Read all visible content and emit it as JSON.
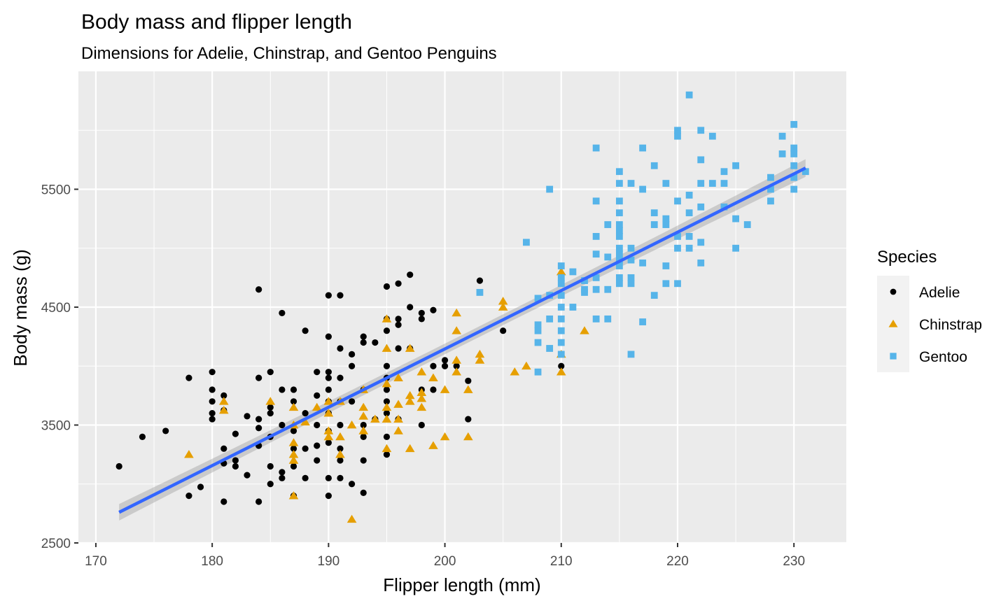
{
  "chart_data": {
    "type": "scatter",
    "title": "Body mass and flipper length",
    "subtitle": "Dimensions for Adelie, Chinstrap, and Gentoo Penguins",
    "xlabel": "Flipper length (mm)",
    "ylabel": "Body mass (g)",
    "xlim": [
      168.5,
      234.5
    ],
    "ylim": [
      2500,
      6500
    ],
    "x_ticks": [
      170,
      180,
      190,
      200,
      210,
      220,
      230
    ],
    "y_ticks": [
      2500,
      3500,
      4500,
      5500
    ],
    "grid": true,
    "legend": {
      "title": "Species",
      "placement": "right"
    },
    "series": [
      {
        "name": "Adelie",
        "color": "#000000",
        "marker": "circle",
        "points": [
          [
            172,
            3150
          ],
          [
            174,
            3400
          ],
          [
            176,
            3450
          ],
          [
            178,
            3900
          ],
          [
            178,
            2900
          ],
          [
            179,
            2975
          ],
          [
            180,
            3950
          ],
          [
            180,
            3800
          ],
          [
            180,
            3700
          ],
          [
            180,
            3600
          ],
          [
            180,
            3550
          ],
          [
            181,
            3750
          ],
          [
            181,
            3625
          ],
          [
            181,
            3300
          ],
          [
            181,
            3175
          ],
          [
            181,
            2850
          ],
          [
            182,
            3425
          ],
          [
            182,
            3200
          ],
          [
            182,
            3150
          ],
          [
            183,
            3575
          ],
          [
            183,
            3075
          ],
          [
            184,
            4650
          ],
          [
            184,
            3900
          ],
          [
            184,
            3550
          ],
          [
            184,
            3475
          ],
          [
            184,
            3325
          ],
          [
            184,
            2850
          ],
          [
            185,
            3950
          ],
          [
            185,
            3650
          ],
          [
            185,
            3600
          ],
          [
            185,
            3400
          ],
          [
            185,
            3150
          ],
          [
            185,
            3000
          ],
          [
            186,
            4450
          ],
          [
            186,
            3800
          ],
          [
            186,
            3500
          ],
          [
            186,
            3100
          ],
          [
            186,
            3050
          ],
          [
            187,
            3800
          ],
          [
            187,
            3700
          ],
          [
            187,
            3450
          ],
          [
            187,
            3300
          ],
          [
            187,
            3150
          ],
          [
            187,
            2900
          ],
          [
            188,
            4300
          ],
          [
            188,
            3600
          ],
          [
            188,
            3300
          ],
          [
            188,
            3050
          ],
          [
            189,
            3950
          ],
          [
            189,
            3750
          ],
          [
            189,
            3500
          ],
          [
            189,
            3325
          ],
          [
            189,
            3200
          ],
          [
            190,
            4600
          ],
          [
            190,
            4250
          ],
          [
            190,
            3950
          ],
          [
            190,
            3900
          ],
          [
            190,
            3800
          ],
          [
            190,
            3700
          ],
          [
            190,
            3600
          ],
          [
            190,
            3450
          ],
          [
            190,
            3350
          ],
          [
            190,
            3050
          ],
          [
            190,
            2900
          ],
          [
            191,
            4600
          ],
          [
            191,
            4150
          ],
          [
            191,
            3900
          ],
          [
            191,
            3700
          ],
          [
            191,
            3500
          ],
          [
            191,
            3300
          ],
          [
            191,
            3200
          ],
          [
            191,
            3050
          ],
          [
            192,
            4100
          ],
          [
            192,
            4000
          ],
          [
            192,
            3700
          ],
          [
            192,
            3000
          ],
          [
            193,
            4250
          ],
          [
            193,
            4200
          ],
          [
            193,
            3800
          ],
          [
            193,
            3500
          ],
          [
            193,
            3400
          ],
          [
            193,
            3200
          ],
          [
            193,
            2925
          ],
          [
            194,
            4200
          ],
          [
            194,
            3550
          ],
          [
            195,
            4675
          ],
          [
            195,
            4400
          ],
          [
            195,
            4300
          ],
          [
            195,
            4000
          ],
          [
            195,
            3900
          ],
          [
            195,
            3800
          ],
          [
            195,
            3700
          ],
          [
            195,
            3600
          ],
          [
            195,
            3400
          ],
          [
            195,
            3250
          ],
          [
            196,
            4700
          ],
          [
            196,
            4400
          ],
          [
            196,
            4350
          ],
          [
            196,
            4150
          ],
          [
            196,
            3550
          ],
          [
            197,
            4775
          ],
          [
            197,
            4500
          ],
          [
            197,
            4150
          ],
          [
            198,
            4450
          ],
          [
            198,
            4400
          ],
          [
            198,
            3800
          ],
          [
            198,
            3500
          ],
          [
            199,
            4475
          ],
          [
            199,
            4000
          ],
          [
            199,
            3800
          ],
          [
            200,
            4050
          ],
          [
            200,
            4000
          ],
          [
            201,
            4000
          ],
          [
            202,
            3875
          ],
          [
            202,
            3550
          ],
          [
            203,
            4725
          ],
          [
            205,
            4300
          ],
          [
            210,
            4000
          ]
        ]
      },
      {
        "name": "Chinstrap",
        "color": "#E69F00",
        "marker": "triangle",
        "points": [
          [
            178,
            3250
          ],
          [
            181,
            3700
          ],
          [
            181,
            3625
          ],
          [
            185,
            3700
          ],
          [
            187,
            3650
          ],
          [
            187,
            3500
          ],
          [
            187,
            3350
          ],
          [
            187,
            3250
          ],
          [
            187,
            3200
          ],
          [
            187,
            2900
          ],
          [
            188,
            3525
          ],
          [
            189,
            3650
          ],
          [
            190,
            3700
          ],
          [
            190,
            3600
          ],
          [
            190,
            3450
          ],
          [
            190,
            3400
          ],
          [
            191,
            3700
          ],
          [
            191,
            3400
          ],
          [
            191,
            3250
          ],
          [
            192,
            3500
          ],
          [
            192,
            2700
          ],
          [
            193,
            3800
          ],
          [
            193,
            3650
          ],
          [
            193,
            3575
          ],
          [
            193,
            3450
          ],
          [
            194,
            3550
          ],
          [
            195,
            4400
          ],
          [
            195,
            4150
          ],
          [
            195,
            3850
          ],
          [
            195,
            3650
          ],
          [
            195,
            3550
          ],
          [
            195,
            3300
          ],
          [
            196,
            3900
          ],
          [
            196,
            3675
          ],
          [
            196,
            3550
          ],
          [
            196,
            3450
          ],
          [
            197,
            4150
          ],
          [
            197,
            3750
          ],
          [
            197,
            3700
          ],
          [
            197,
            3300
          ],
          [
            198,
            3950
          ],
          [
            198,
            3775
          ],
          [
            198,
            3725
          ],
          [
            198,
            3650
          ],
          [
            199,
            3900
          ],
          [
            199,
            3325
          ],
          [
            200,
            3800
          ],
          [
            200,
            3400
          ],
          [
            201,
            4450
          ],
          [
            201,
            4300
          ],
          [
            201,
            4050
          ],
          [
            201,
            3950
          ],
          [
            202,
            3800
          ],
          [
            202,
            3400
          ],
          [
            203,
            4100
          ],
          [
            203,
            4050
          ],
          [
            205,
            4550
          ],
          [
            205,
            4500
          ],
          [
            206,
            3950
          ],
          [
            207,
            4000
          ],
          [
            210,
            4800
          ],
          [
            210,
            4100
          ],
          [
            210,
            3950
          ],
          [
            212,
            4300
          ]
        ]
      },
      {
        "name": "Gentoo",
        "color": "#56B4E9",
        "marker": "square",
        "points": [
          [
            203,
            4625
          ],
          [
            207,
            5050
          ],
          [
            208,
            4575
          ],
          [
            208,
            4350
          ],
          [
            208,
            4300
          ],
          [
            208,
            4200
          ],
          [
            208,
            3950
          ],
          [
            209,
            5500
          ],
          [
            209,
            4600
          ],
          [
            209,
            4400
          ],
          [
            209,
            4150
          ],
          [
            210,
            4850
          ],
          [
            210,
            4750
          ],
          [
            210,
            4700
          ],
          [
            210,
            4600
          ],
          [
            210,
            4500
          ],
          [
            210,
            4400
          ],
          [
            210,
            4300
          ],
          [
            210,
            4200
          ],
          [
            210,
            4100
          ],
          [
            211,
            4800
          ],
          [
            211,
            4500
          ],
          [
            212,
            4725
          ],
          [
            212,
            4650
          ],
          [
            212,
            4625
          ],
          [
            213,
            5850
          ],
          [
            213,
            5400
          ],
          [
            213,
            5100
          ],
          [
            213,
            4950
          ],
          [
            213,
            4750
          ],
          [
            213,
            4650
          ],
          [
            213,
            4400
          ],
          [
            214,
            5200
          ],
          [
            214,
            4925
          ],
          [
            214,
            4650
          ],
          [
            214,
            4400
          ],
          [
            215,
            5650
          ],
          [
            215,
            5550
          ],
          [
            215,
            5400
          ],
          [
            215,
            5300
          ],
          [
            215,
            5200
          ],
          [
            215,
            5150
          ],
          [
            215,
            5100
          ],
          [
            215,
            5000
          ],
          [
            215,
            4950
          ],
          [
            215,
            4900
          ],
          [
            215,
            4850
          ],
          [
            215,
            4750
          ],
          [
            215,
            4700
          ],
          [
            216,
            5550
          ],
          [
            216,
            5000
          ],
          [
            216,
            4900
          ],
          [
            216,
            4750
          ],
          [
            216,
            4700
          ],
          [
            216,
            4100
          ],
          [
            217,
            5850
          ],
          [
            217,
            5500
          ],
          [
            217,
            4875
          ],
          [
            217,
            4375
          ],
          [
            218,
            5700
          ],
          [
            218,
            5300
          ],
          [
            218,
            5200
          ],
          [
            218,
            4600
          ],
          [
            219,
            5550
          ],
          [
            219,
            5250
          ],
          [
            219,
            5200
          ],
          [
            219,
            4850
          ],
          [
            219,
            4700
          ],
          [
            220,
            6000
          ],
          [
            220,
            5950
          ],
          [
            220,
            5400
          ],
          [
            220,
            5100
          ],
          [
            220,
            5000
          ],
          [
            220,
            4700
          ],
          [
            221,
            6300
          ],
          [
            221,
            5450
          ],
          [
            221,
            5300
          ],
          [
            221,
            5100
          ],
          [
            221,
            5000
          ],
          [
            222,
            6000
          ],
          [
            222,
            5750
          ],
          [
            222,
            5550
          ],
          [
            222,
            5350
          ],
          [
            222,
            5050
          ],
          [
            222,
            4875
          ],
          [
            223,
            5950
          ],
          [
            223,
            5550
          ],
          [
            224,
            5650
          ],
          [
            224,
            5550
          ],
          [
            224,
            5350
          ],
          [
            225,
            5700
          ],
          [
            225,
            5250
          ],
          [
            225,
            5000
          ],
          [
            226,
            5200
          ],
          [
            228,
            5600
          ],
          [
            228,
            5500
          ],
          [
            228,
            5400
          ],
          [
            229,
            5950
          ],
          [
            229,
            5800
          ],
          [
            230,
            6050
          ],
          [
            230,
            5850
          ],
          [
            230,
            5800
          ],
          [
            230,
            5700
          ],
          [
            230,
            5600
          ],
          [
            230,
            5500
          ],
          [
            231,
            5650
          ]
        ]
      }
    ],
    "fit_line": {
      "method": "lm",
      "color": "#3366FF",
      "x": [
        172,
        231
      ],
      "y": [
        2760,
        5680
      ],
      "ci_halfwidth": [
        70,
        45,
        75
      ]
    }
  }
}
